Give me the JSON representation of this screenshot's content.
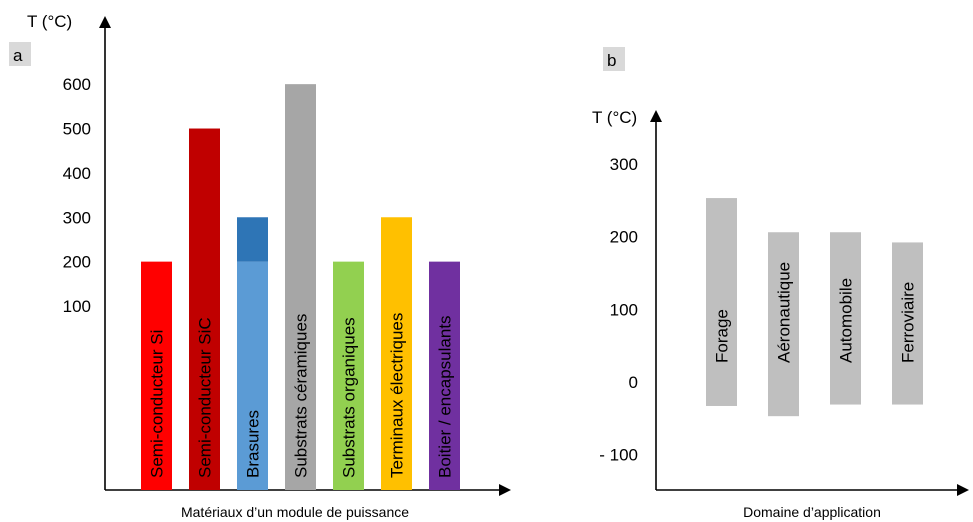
{
  "chart_data": [
    {
      "panel": "a",
      "type": "bar",
      "ylabel": "T (°C)",
      "xlabel": "Matériaux d’un module de puissance",
      "yticks": [
        100,
        200,
        300,
        400,
        500,
        600
      ],
      "bars": [
        {
          "label": "Semi-conducteur Si",
          "segments": [
            {
              "from": 0,
              "to": 200,
              "color": "#ff0000"
            }
          ]
        },
        {
          "label": "Semi-conducteur SiC",
          "segments": [
            {
              "from": 0,
              "to": 500,
              "color": "#c00000"
            }
          ]
        },
        {
          "label": "Brasures",
          "segments": [
            {
              "from": 0,
              "to": 200,
              "color": "#5b9bd5"
            },
            {
              "from": 200,
              "to": 300,
              "color": "#2e75b6"
            }
          ]
        },
        {
          "label": "Substrats céramiques",
          "segments": [
            {
              "from": 0,
              "to": 600,
              "color": "#a6a6a6"
            }
          ]
        },
        {
          "label": "Substrats organiques",
          "segments": [
            {
              "from": 0,
              "to": 200,
              "color": "#92d050"
            }
          ]
        },
        {
          "label": "Terminaux électriques",
          "segments": [
            {
              "from": 0,
              "to": 300,
              "color": "#ffc000"
            }
          ]
        },
        {
          "label": "Boitier / encapsulants",
          "segments": [
            {
              "from": 0,
              "to": 200,
              "color": "#7030a0"
            }
          ]
        }
      ]
    },
    {
      "panel": "b",
      "type": "bar",
      "ylabel": "T (°C)",
      "xlabel": "Domaine d’application",
      "yticks": [
        -100,
        0,
        100,
        200,
        300
      ],
      "ytick_labels": [
        "- 100",
        "0",
        "100",
        "200",
        "300"
      ],
      "bars": [
        {
          "label": "Forage",
          "min": -33,
          "max": 253,
          "color": "#bfbfbf"
        },
        {
          "label": "Aéronautique",
          "min": -47,
          "max": 206,
          "color": "#bfbfbf"
        },
        {
          "label": "Automobile",
          "min": -31,
          "max": 206,
          "color": "#bfbfbf"
        },
        {
          "label": "Ferroviaire",
          "min": -31,
          "max": 192,
          "color": "#bfbfbf"
        }
      ]
    }
  ]
}
